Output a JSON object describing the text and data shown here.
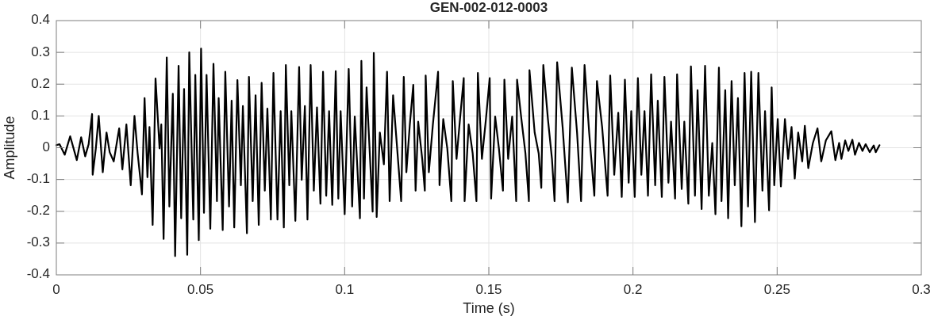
{
  "chart_data": {
    "type": "line",
    "title": "GEN-002-012-0003",
    "xlabel": "Time (s)",
    "ylabel": "Amplitude",
    "color": "#000000",
    "xlim": [
      0,
      0.3
    ],
    "ylim": [
      -0.4,
      0.4
    ],
    "xticks": [
      0,
      0.05,
      0.1,
      0.15,
      0.2,
      0.25,
      0.3
    ],
    "yticks": [
      -0.4,
      -0.3,
      -0.2,
      -0.1,
      0,
      0.1,
      0.2,
      0.3,
      0.4
    ],
    "grid": true,
    "x": [
      0,
      0.0011,
      0.0029,
      0.0048,
      0.0071,
      0.0086,
      0.01,
      0.0112,
      0.0124,
      0.0126,
      0.0137,
      0.0147,
      0.0161,
      0.0174,
      0.0185,
      0.0199,
      0.0218,
      0.0229,
      0.0243,
      0.0258,
      0.0271,
      0.0282,
      0.0297,
      0.0306,
      0.0316,
      0.0323,
      0.0334,
      0.0344,
      0.0358,
      0.0364,
      0.0372,
      0.0383,
      0.0392,
      0.0404,
      0.0412,
      0.0424,
      0.0433,
      0.0443,
      0.0454,
      0.0461,
      0.0475,
      0.0482,
      0.0494,
      0.0502,
      0.0512,
      0.0521,
      0.0534,
      0.0545,
      0.0557,
      0.0563,
      0.0577,
      0.0586,
      0.0599,
      0.0608,
      0.0617,
      0.0628,
      0.064,
      0.0647,
      0.0661,
      0.0668,
      0.0681,
      0.0691,
      0.0702,
      0.0712,
      0.0723,
      0.0732,
      0.0744,
      0.0753,
      0.0767,
      0.0778,
      0.0789,
      0.0796,
      0.0808,
      0.0815,
      0.0829,
      0.0842,
      0.0851,
      0.0862,
      0.0871,
      0.0882,
      0.0893,
      0.0904,
      0.0916,
      0.0925,
      0.0936,
      0.0946,
      0.0957,
      0.0969,
      0.0978,
      0.0986,
      0.1,
      0.1014,
      0.1026,
      0.1035,
      0.1053,
      0.1058,
      0.1067,
      0.1076,
      0.1097,
      0.1101,
      0.1111,
      0.1122,
      0.1136,
      0.1147,
      0.1156,
      0.1168,
      0.1196,
      0.1205,
      0.1214,
      0.1226,
      0.1238,
      0.1246,
      0.1255,
      0.1269,
      0.1278,
      0.1281,
      0.1292,
      0.1306,
      0.1324,
      0.1329,
      0.1342,
      0.1356,
      0.137,
      0.1375,
      0.1388,
      0.14,
      0.1413,
      0.1416,
      0.143,
      0.1444,
      0.1457,
      0.1462,
      0.1476,
      0.149,
      0.1503,
      0.1508,
      0.1522,
      0.1535,
      0.1549,
      0.1554,
      0.1567,
      0.1581,
      0.1595,
      0.1598,
      0.1613,
      0.1627,
      0.1639,
      0.1641,
      0.1659,
      0.1673,
      0.1682,
      0.1689,
      0.1705,
      0.1719,
      0.1728,
      0.1737,
      0.1756,
      0.1774,
      0.1788,
      0.1806,
      0.182,
      0.1832,
      0.1848,
      0.1866,
      0.1875,
      0.1893,
      0.1912,
      0.1921,
      0.1935,
      0.1949,
      0.1961,
      0.1972,
      0.1985,
      0.1994,
      0.2006,
      0.2017,
      0.2029,
      0.204,
      0.2052,
      0.2063,
      0.2077,
      0.2086,
      0.21,
      0.2109,
      0.2123,
      0.2132,
      0.2146,
      0.2153,
      0.2169,
      0.2178,
      0.2192,
      0.2201,
      0.2215,
      0.2224,
      0.2238,
      0.225,
      0.2263,
      0.2275,
      0.2286,
      0.2298,
      0.2307,
      0.232,
      0.233,
      0.2342,
      0.2353,
      0.2364,
      0.2376,
      0.2387,
      0.2399,
      0.241,
      0.2423,
      0.2435,
      0.2449,
      0.2458,
      0.2472,
      0.2481,
      0.249,
      0.2502,
      0.2513,
      0.2527,
      0.2538,
      0.255,
      0.2561,
      0.2573,
      0.2587,
      0.2596,
      0.2608,
      0.2624,
      0.264,
      0.2653,
      0.2669,
      0.2688,
      0.2702,
      0.2715,
      0.2723,
      0.2736,
      0.2747,
      0.2761,
      0.277,
      0.2784,
      0.2796,
      0.2807,
      0.2821,
      0.2835,
      0.2842,
      0.2855
    ],
    "values": [
      0.008,
      0.011,
      -0.022,
      0.036,
      -0.039,
      0.033,
      -0.027,
      0.011,
      0.106,
      -0.085,
      -0.002,
      0.1,
      -0.077,
      0.048,
      -0.014,
      -0.043,
      0.061,
      -0.068,
      0.073,
      -0.118,
      0.1,
      -0.018,
      -0.147,
      0.156,
      -0.093,
      0.065,
      -0.243,
      0.218,
      -0.002,
      0.073,
      -0.287,
      0.284,
      -0.185,
      0.17,
      -0.341,
      0.258,
      -0.222,
      0.185,
      -0.337,
      0.3,
      -0.226,
      0.229,
      -0.291,
      0.312,
      -0.205,
      0.229,
      -0.255,
      0.264,
      -0.168,
      0.156,
      -0.259,
      0.239,
      -0.185,
      0.148,
      -0.251,
      0.213,
      -0.118,
      0.131,
      -0.269,
      0.223,
      -0.168,
      0.165,
      -0.243,
      0.204,
      -0.135,
      0.123,
      -0.226,
      0.235,
      -0.226,
      0.115,
      -0.251,
      0.26,
      -0.118,
      0.115,
      -0.23,
      0.254,
      -0.101,
      0.131,
      -0.226,
      0.26,
      -0.135,
      0.127,
      -0.176,
      0.239,
      -0.151,
      0.115,
      -0.18,
      0.241,
      -0.16,
      0.115,
      -0.209,
      0.248,
      -0.185,
      0.098,
      -0.222,
      0.273,
      -0.16,
      0.19,
      -0.201,
      0.298,
      -0.218,
      0.048,
      -0.052,
      0.239,
      -0.168,
      0.165,
      -0.168,
      0.223,
      -0.077,
      0.073,
      0.198,
      -0.135,
      0.082,
      -0.035,
      -0.135,
      0.227,
      -0.077,
      0.073,
      0.239,
      -0.118,
      0.09,
      -0.002,
      -0.168,
      0.21,
      -0.035,
      0.09,
      0.219,
      -0.168,
      0.073,
      -0.018,
      -0.168,
      0.235,
      -0.035,
      0.09,
      0.219,
      -0.16,
      0.098,
      -0.002,
      -0.135,
      0.214,
      -0.035,
      0.098,
      -0.168,
      0.214,
      0.09,
      -0.018,
      -0.168,
      0.244,
      0.048,
      -0.018,
      -0.126,
      0.26,
      0.09,
      -0.035,
      -0.168,
      0.269,
      0.065,
      -0.172,
      0.252,
      0.048,
      -0.168,
      0.26,
      0.048,
      -0.151,
      0.21,
      0.065,
      -0.151,
      0.227,
      -0.085,
      0.11,
      -0.155,
      0.214,
      -0.11,
      0.115,
      -0.155,
      0.219,
      -0.085,
      0.115,
      -0.151,
      0.231,
      -0.118,
      0.148,
      -0.155,
      0.223,
      -0.11,
      0.082,
      -0.16,
      0.231,
      -0.13,
      0.082,
      -0.176,
      0.256,
      -0.151,
      0.181,
      -0.193,
      0.258,
      -0.151,
      0.015,
      -0.209,
      0.252,
      -0.168,
      0.181,
      -0.222,
      0.21,
      -0.118,
      0.156,
      -0.247,
      0.235,
      -0.185,
      0.239,
      -0.234,
      0.235,
      -0.135,
      0.115,
      -0.197,
      0.19,
      -0.118,
      0.09,
      -0.122,
      0.09,
      -0.035,
      0.065,
      -0.097,
      0.048,
      -0.043,
      0.069,
      -0.064,
      0.015,
      0.061,
      -0.043,
      0.023,
      0.052,
      -0.039,
      0.015,
      -0.035,
      0.023,
      -0.01,
      0.025,
      -0.022,
      0.015,
      -0.01,
      0.011,
      -0.014,
      0.007,
      -0.014,
      0.008
    ]
  }
}
